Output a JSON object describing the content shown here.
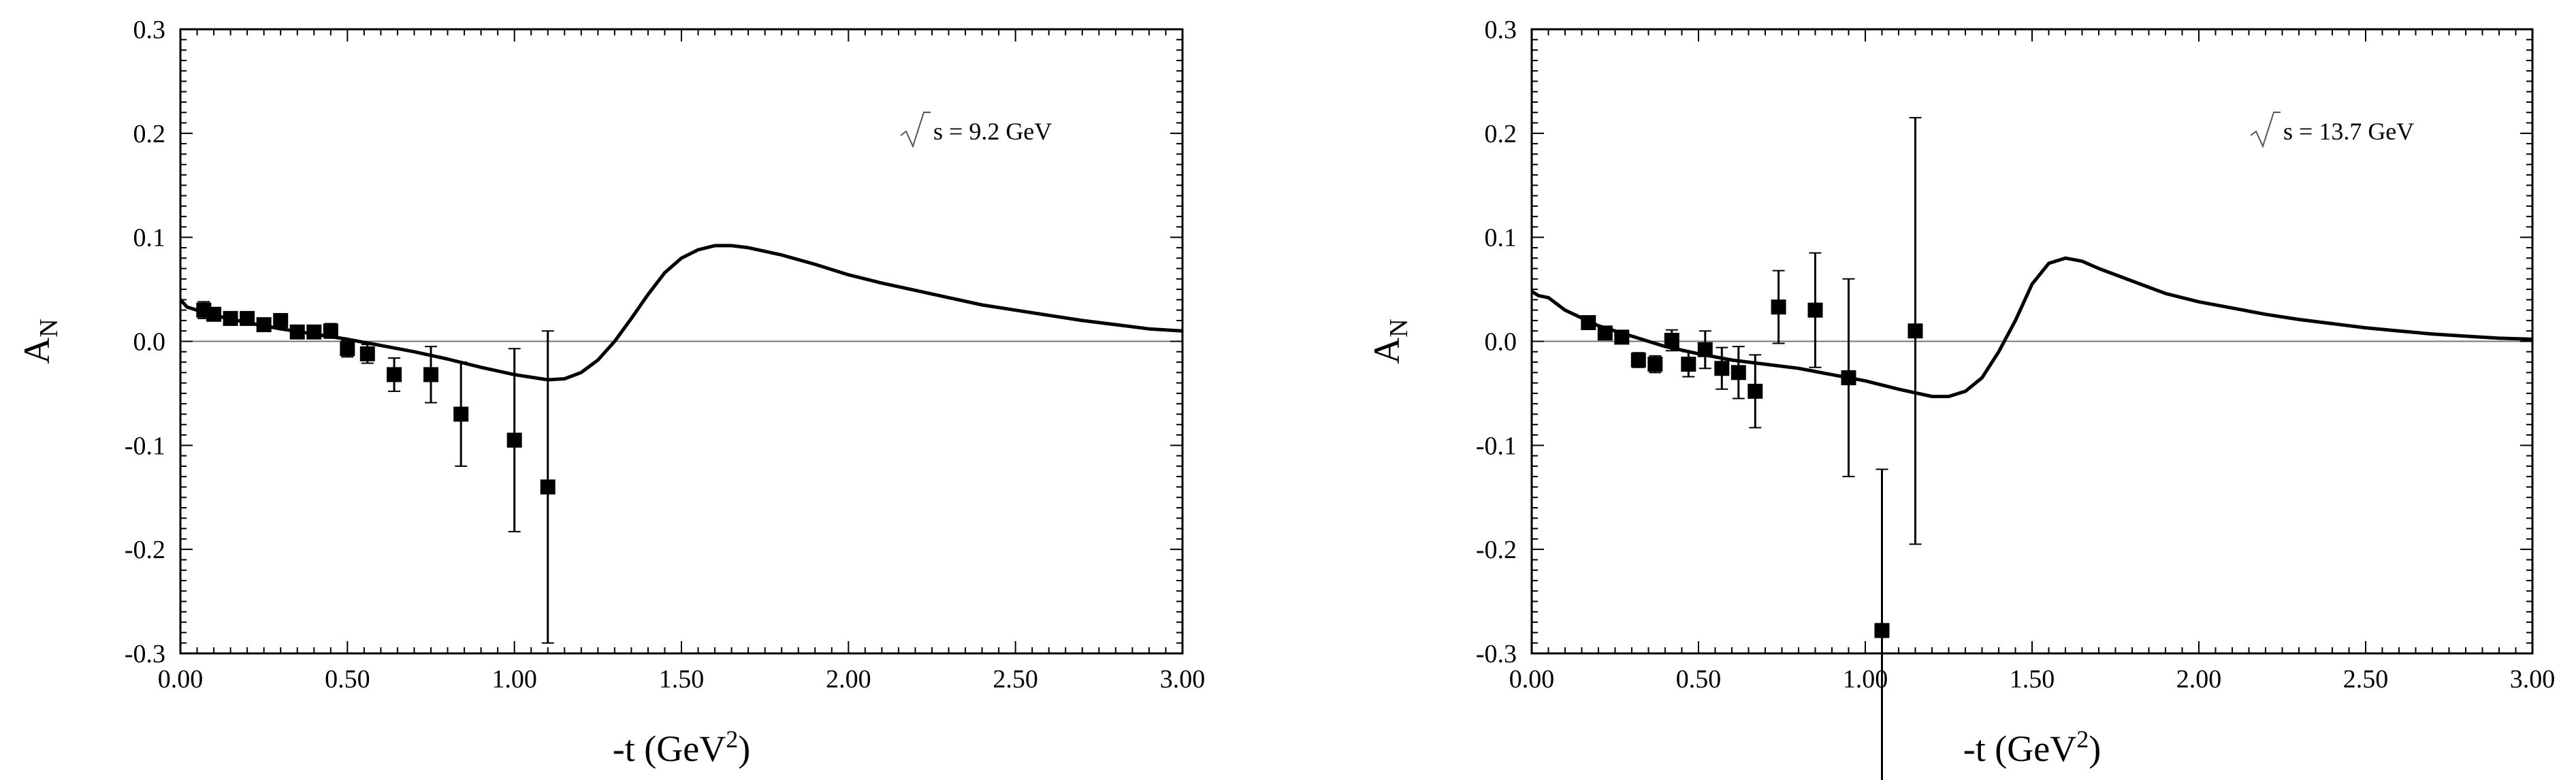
{
  "chart_data": [
    {
      "type": "scatter",
      "panel": "left",
      "annotation": "s = 9.2 GeV",
      "xlabel": "-t (GeV",
      "xlabel_sup": "2",
      "xlabel_end": ")",
      "ylabel": "A",
      "ylabel_sub": "N",
      "xlim": [
        0,
        3
      ],
      "ylim": [
        -0.3,
        0.3
      ],
      "x_ticks": [
        0,
        0.5,
        1.0,
        1.5,
        2.0,
        2.5,
        3.0
      ],
      "x_tick_labels": [
        "0.00",
        "0.50",
        "1.00",
        "1.50",
        "2.00",
        "2.50",
        "3.00"
      ],
      "y_ticks": [
        0.3,
        0.2,
        0.1,
        0.0,
        -0.1,
        -0.2,
        -0.3
      ],
      "y_tick_labels": [
        "0.3",
        "0.2",
        "0.1",
        "0.0",
        "-0.1",
        "-0.2",
        "-0.3"
      ],
      "series": [
        {
          "name": "data",
          "points": [
            {
              "x": 0.07,
              "y": 0.03,
              "err": 0.008
            },
            {
              "x": 0.1,
              "y": 0.026,
              "err": 0.006
            },
            {
              "x": 0.15,
              "y": 0.022,
              "err": 0.005
            },
            {
              "x": 0.2,
              "y": 0.022,
              "err": 0.005
            },
            {
              "x": 0.25,
              "y": 0.016,
              "err": 0.005
            },
            {
              "x": 0.3,
              "y": 0.02,
              "err": 0.005
            },
            {
              "x": 0.35,
              "y": 0.009,
              "err": 0.006
            },
            {
              "x": 0.4,
              "y": 0.009,
              "err": 0.006
            },
            {
              "x": 0.45,
              "y": 0.01,
              "err": 0.007
            },
            {
              "x": 0.5,
              "y": -0.007,
              "err": 0.008
            },
            {
              "x": 0.56,
              "y": -0.012,
              "err": 0.009
            },
            {
              "x": 0.64,
              "y": -0.032,
              "err": 0.016
            },
            {
              "x": 0.75,
              "y": -0.032,
              "err": 0.027
            },
            {
              "x": 0.84,
              "y": -0.07,
              "err": 0.05
            },
            {
              "x": 1.0,
              "y": -0.095,
              "err": 0.088
            },
            {
              "x": 1.1,
              "y": -0.14,
              "err": 0.15
            }
          ]
        },
        {
          "name": "theory",
          "x": [
            0.0,
            0.02,
            0.05,
            0.1,
            0.2,
            0.3,
            0.4,
            0.5,
            0.6,
            0.7,
            0.8,
            0.9,
            1.0,
            1.1,
            1.15,
            1.2,
            1.25,
            1.3,
            1.35,
            1.4,
            1.45,
            1.5,
            1.55,
            1.6,
            1.65,
            1.7,
            1.8,
            1.9,
            2.0,
            2.1,
            2.2,
            2.3,
            2.4,
            2.5,
            2.6,
            2.7,
            2.8,
            2.9,
            3.0
          ],
          "y": [
            0.04,
            0.033,
            0.03,
            0.025,
            0.018,
            0.012,
            0.007,
            0.002,
            -0.004,
            -0.01,
            -0.017,
            -0.025,
            -0.032,
            -0.037,
            -0.036,
            -0.03,
            -0.018,
            0.0,
            0.022,
            0.045,
            0.066,
            0.08,
            0.088,
            0.092,
            0.092,
            0.09,
            0.083,
            0.074,
            0.064,
            0.056,
            0.049,
            0.042,
            0.035,
            0.03,
            0.025,
            0.02,
            0.016,
            0.012,
            0.01
          ]
        }
      ]
    },
    {
      "type": "scatter",
      "panel": "right",
      "annotation": "s = 13.7 GeV",
      "xlabel": "-t (GeV",
      "xlabel_sup": "2",
      "xlabel_end": ")",
      "ylabel": "A",
      "ylabel_sub": "N",
      "xlim": [
        0,
        3
      ],
      "ylim": [
        -0.3,
        0.3
      ],
      "x_ticks": [
        0,
        0.5,
        1.0,
        1.5,
        2.0,
        2.5,
        3.0
      ],
      "x_tick_labels": [
        "0.00",
        "0.50",
        "1.00",
        "1.50",
        "2.00",
        "2.50",
        "3.00"
      ],
      "y_ticks": [
        0.3,
        0.2,
        0.1,
        0.0,
        -0.1,
        -0.2,
        -0.3
      ],
      "y_tick_labels": [
        "0.3",
        "0.2",
        "0.1",
        "0.0",
        "-0.1",
        "-0.2",
        "-0.3"
      ],
      "series": [
        {
          "name": "data",
          "points": [
            {
              "x": 0.17,
              "y": 0.018,
              "err": 0.005
            },
            {
              "x": 0.22,
              "y": 0.008,
              "err": 0.005
            },
            {
              "x": 0.27,
              "y": 0.004,
              "err": 0.006
            },
            {
              "x": 0.32,
              "y": -0.018,
              "err": 0.007
            },
            {
              "x": 0.37,
              "y": -0.022,
              "err": 0.008
            },
            {
              "x": 0.42,
              "y": 0.001,
              "err": 0.01
            },
            {
              "x": 0.47,
              "y": -0.022,
              "err": 0.012
            },
            {
              "x": 0.52,
              "y": -0.008,
              "err": 0.018
            },
            {
              "x": 0.57,
              "y": -0.026,
              "err": 0.02
            },
            {
              "x": 0.62,
              "y": -0.03,
              "err": 0.025
            },
            {
              "x": 0.67,
              "y": -0.048,
              "err": 0.035
            },
            {
              "x": 0.74,
              "y": 0.033,
              "err": 0.035
            },
            {
              "x": 0.85,
              "y": 0.03,
              "err": 0.055
            },
            {
              "x": 0.95,
              "y": -0.035,
              "err": 0.095
            },
            {
              "x": 1.05,
              "y": -0.278,
              "err": 0.155
            },
            {
              "x": 1.15,
              "y": 0.01,
              "err": 0.205
            }
          ]
        },
        {
          "name": "theory",
          "x": [
            0.0,
            0.02,
            0.05,
            0.1,
            0.2,
            0.3,
            0.4,
            0.5,
            0.6,
            0.7,
            0.8,
            0.9,
            1.0,
            1.1,
            1.2,
            1.25,
            1.3,
            1.35,
            1.4,
            1.45,
            1.5,
            1.55,
            1.6,
            1.65,
            1.7,
            1.8,
            1.9,
            2.0,
            2.1,
            2.2,
            2.3,
            2.4,
            2.5,
            2.6,
            2.7,
            2.8,
            2.9,
            3.0
          ],
          "y": [
            0.048,
            0.044,
            0.042,
            0.03,
            0.015,
            0.005,
            -0.005,
            -0.012,
            -0.018,
            -0.022,
            -0.026,
            -0.032,
            -0.038,
            -0.046,
            -0.053,
            -0.053,
            -0.048,
            -0.035,
            -0.01,
            0.02,
            0.055,
            0.075,
            0.08,
            0.077,
            0.07,
            0.058,
            0.046,
            0.038,
            0.032,
            0.026,
            0.021,
            0.017,
            0.013,
            0.01,
            0.007,
            0.005,
            0.003,
            0.002
          ]
        }
      ]
    }
  ]
}
